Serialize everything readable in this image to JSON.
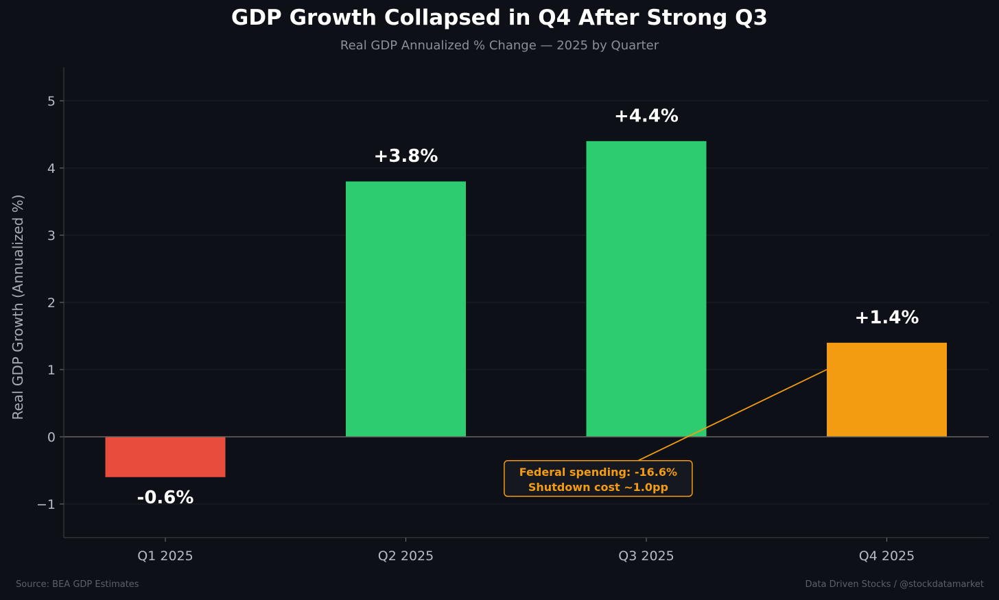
{
  "chart_data": {
    "type": "bar",
    "title": "GDP Growth Collapsed in Q4 After Strong Q3",
    "subtitle": "Real GDP Annualized % Change — 2025 by Quarter",
    "xlabel": "",
    "ylabel": "Real GDP Growth (Annualized %)",
    "categories": [
      "Q1 2025",
      "Q2 2025",
      "Q3 2025",
      "Q4 2025"
    ],
    "values": [
      -0.6,
      3.8,
      4.4,
      1.4
    ],
    "value_labels": [
      "-0.6%",
      "+3.8%",
      "+4.4%",
      "+1.4%"
    ],
    "bar_colors": [
      "#e74c3c",
      "#2ecc71",
      "#2ecc71",
      "#f39c12"
    ],
    "ylim": [
      -1.5,
      5.5
    ],
    "yticks": [
      -1,
      0,
      1,
      2,
      3,
      4,
      5
    ],
    "ytick_labels": [
      "−1",
      "0",
      "1",
      "2",
      "3",
      "4",
      "5"
    ],
    "grid": true,
    "annotation": {
      "lines": [
        "Federal spending: -16.6%",
        "Shutdown cost ~1.0pp"
      ],
      "xy": [
        2.75,
        1.0
      ],
      "xytext": [
        1.8,
        -0.62
      ],
      "color": "#f39c12"
    }
  },
  "footer": {
    "source": "Source: BEA GDP Estimates",
    "credit": "Data Driven Stocks / @stockdatamarket"
  }
}
